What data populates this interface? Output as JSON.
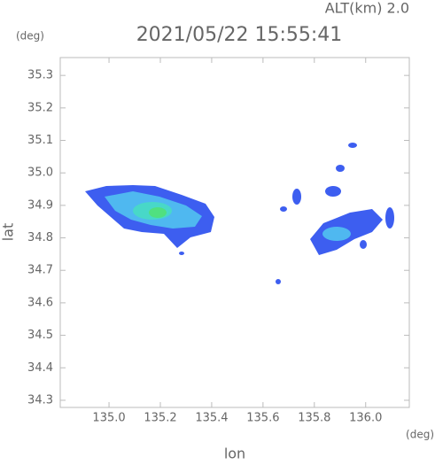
{
  "chart_data": {
    "type": "radar-map",
    "title": "2021/05/22 15:55:41",
    "subtitle": "ALT(km) 2.0",
    "y_unit": "(deg)",
    "x_unit": "(deg)",
    "x_label": "lon",
    "y_label": "lat",
    "xlim": [
      134.81,
      136.17
    ],
    "ylim": [
      34.278,
      35.355
    ],
    "xticks": [
      {
        "value": 135,
        "label": "135.0"
      },
      135.2,
      135.4,
      135.6,
      135.8,
      {
        "value": 136,
        "label": "136.0"
      }
    ],
    "yticks": [
      34.3,
      34.4,
      34.5,
      34.6,
      34.7,
      34.8,
      34.9,
      {
        "value": 35,
        "label": "35.0"
      },
      35.1,
      35.2,
      35.3
    ]
  }
}
